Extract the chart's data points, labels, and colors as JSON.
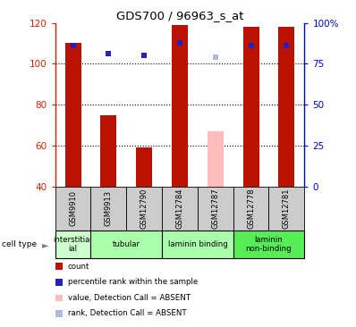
{
  "title": "GDS700 / 96963_s_at",
  "samples": [
    "GSM9910",
    "GSM9913",
    "GSM12790",
    "GSM12784",
    "GSM12787",
    "GSM12778",
    "GSM12781"
  ],
  "bar_values": [
    110,
    75,
    59,
    119,
    null,
    118,
    118
  ],
  "bar_absent_values": [
    null,
    null,
    null,
    null,
    67,
    null,
    null
  ],
  "rank_values": [
    86,
    81,
    80,
    88,
    null,
    86,
    86
  ],
  "rank_absent_values": [
    null,
    null,
    null,
    null,
    79,
    null,
    null
  ],
  "ylim_left": [
    40,
    120
  ],
  "ylim_right": [
    0,
    100
  ],
  "yticks_left": [
    40,
    60,
    80,
    100,
    120
  ],
  "yticks_right": [
    0,
    25,
    50,
    75,
    100
  ],
  "ytick_labels_right": [
    "0",
    "25",
    "50",
    "75",
    "100%"
  ],
  "bar_color": "#bb1100",
  "bar_absent_color": "#ffbbbb",
  "rank_color": "#2222bb",
  "rank_absent_color": "#aabbdd",
  "cell_types": [
    {
      "label": "interstitial\nial",
      "span": [
        0,
        1
      ],
      "color": "#ccffcc"
    },
    {
      "label": "tubular",
      "span": [
        1,
        3
      ],
      "color": "#aaffaa"
    },
    {
      "label": "laminin binding",
      "span": [
        3,
        5
      ],
      "color": "#aaffaa"
    },
    {
      "label": "laminin\nnon-binding",
      "span": [
        5,
        7
      ],
      "color": "#55ee55"
    }
  ],
  "sample_bg_color": "#cccccc",
  "bar_width": 0.45,
  "grid_color": "black",
  "left_axis_color": "#cc2200",
  "right_axis_color": "#0000cc",
  "legend_items": [
    {
      "color": "#bb1100",
      "label": "count"
    },
    {
      "color": "#2222bb",
      "label": "percentile rank within the sample"
    },
    {
      "color": "#ffbbbb",
      "label": "value, Detection Call = ABSENT"
    },
    {
      "color": "#aabbdd",
      "label": "rank, Detection Call = ABSENT"
    }
  ]
}
